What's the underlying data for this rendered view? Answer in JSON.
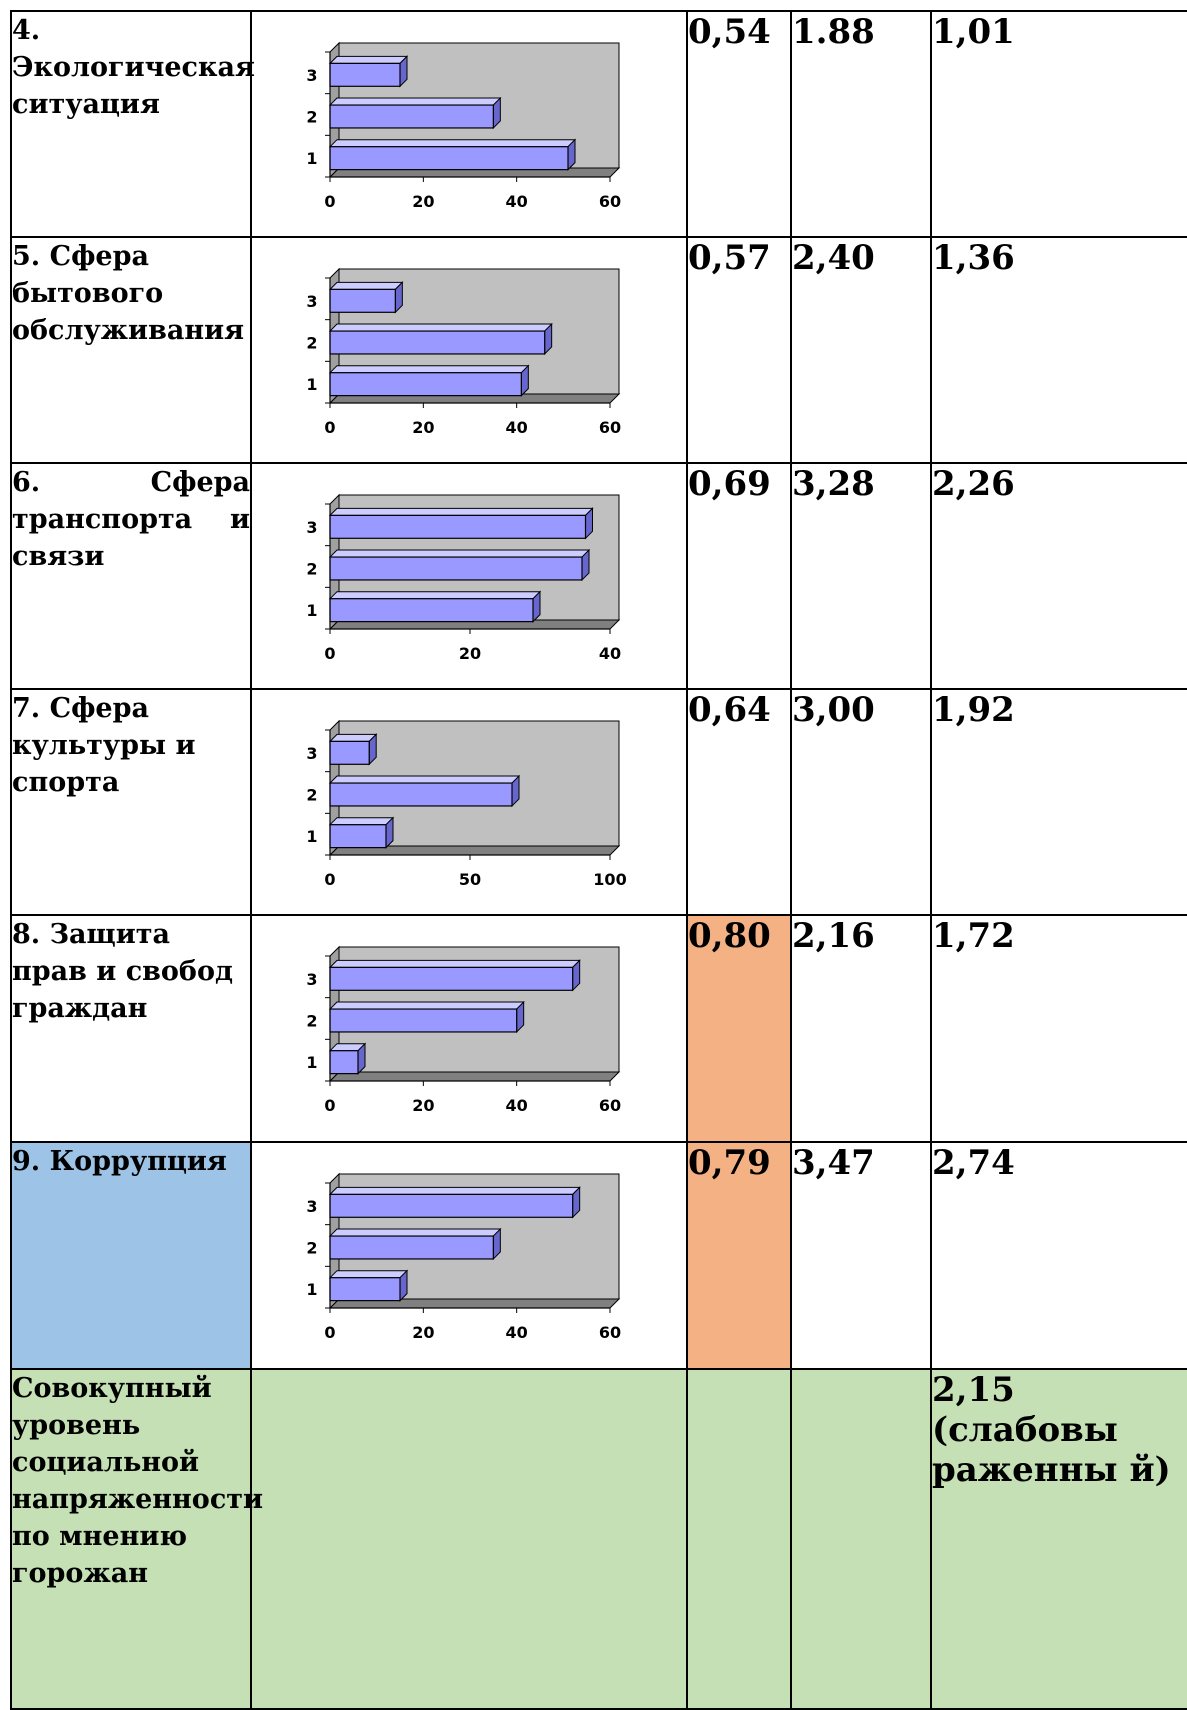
{
  "rows": [
    {
      "name": "4. Экологическая ситуация",
      "v1": "0,54",
      "v2": "1.88",
      "v3": "1,01",
      "highlight_name": false,
      "highlight_v1": false,
      "chart_data": {
        "type": "bar",
        "orientation": "horizontal",
        "categories": [
          "1",
          "2",
          "3"
        ],
        "values": [
          51,
          35,
          15
        ],
        "xlim": [
          0,
          60
        ],
        "xticks": [
          0,
          20,
          40,
          60
        ]
      }
    },
    {
      "name": "5. Сфера бытового обслуживания",
      "v1": "0,57",
      "v2": "2,40",
      "v3": "1,36",
      "highlight_name": false,
      "highlight_v1": false,
      "chart_data": {
        "type": "bar",
        "orientation": "horizontal",
        "categories": [
          "1",
          "2",
          "3"
        ],
        "values": [
          41,
          46,
          14
        ],
        "xlim": [
          0,
          60
        ],
        "xticks": [
          0,
          20,
          40,
          60
        ]
      }
    },
    {
      "name": "6. Сфера транспорта и связи",
      "v1": "0,69",
      "v2": "3,28",
      "v3": "2,26",
      "highlight_name": false,
      "highlight_v1": false,
      "chart_data": {
        "type": "bar",
        "orientation": "horizontal",
        "categories": [
          "1",
          "2",
          "3"
        ],
        "values": [
          29,
          36,
          36.5
        ],
        "xlim": [
          0,
          40
        ],
        "xticks": [
          0,
          20,
          40
        ]
      }
    },
    {
      "name": "7. Сфера культуры и спорта",
      "v1": "0,64",
      "v2": "3,00",
      "v3": "1,92",
      "highlight_name": false,
      "highlight_v1": false,
      "chart_data": {
        "type": "bar",
        "orientation": "horizontal",
        "categories": [
          "1",
          "2",
          "3"
        ],
        "values": [
          20,
          65,
          14
        ],
        "xlim": [
          0,
          100
        ],
        "xticks": [
          0,
          50,
          100
        ]
      }
    },
    {
      "name": "8. Защита прав и свобод граждан",
      "v1": "0,80",
      "v2": "2,16",
      "v3": "1,72",
      "highlight_name": false,
      "highlight_v1": true,
      "chart_data": {
        "type": "bar",
        "orientation": "horizontal",
        "categories": [
          "1",
          "2",
          "3"
        ],
        "values": [
          6,
          40,
          52
        ],
        "xlim": [
          0,
          60
        ],
        "xticks": [
          0,
          20,
          40,
          60
        ]
      }
    },
    {
      "name": "9. Коррупция",
      "v1": "0,79",
      "v2": "3,47",
      "v3": "2,74",
      "highlight_name": true,
      "highlight_v1": true,
      "chart_data": {
        "type": "bar",
        "orientation": "horizontal",
        "categories": [
          "1",
          "2",
          "3"
        ],
        "values": [
          15,
          35,
          52
        ],
        "xlim": [
          0,
          60
        ],
        "xticks": [
          0,
          20,
          40,
          60
        ]
      }
    }
  ],
  "summary": {
    "name": "Совокупный уровень социальной напряженности по мнению горожан",
    "value": "2,15 (слабовы раженны й)"
  },
  "colors": {
    "bar_fill": "#9999ff",
    "bar_top": "#ccccff",
    "bar_side": "#6666cc",
    "plot_back": "#c0c0c0",
    "plot_floor": "#808080",
    "highlight_blue": "#9dc3e6",
    "highlight_orange": "#f4b183",
    "highlight_green": "#c5e0b4"
  }
}
